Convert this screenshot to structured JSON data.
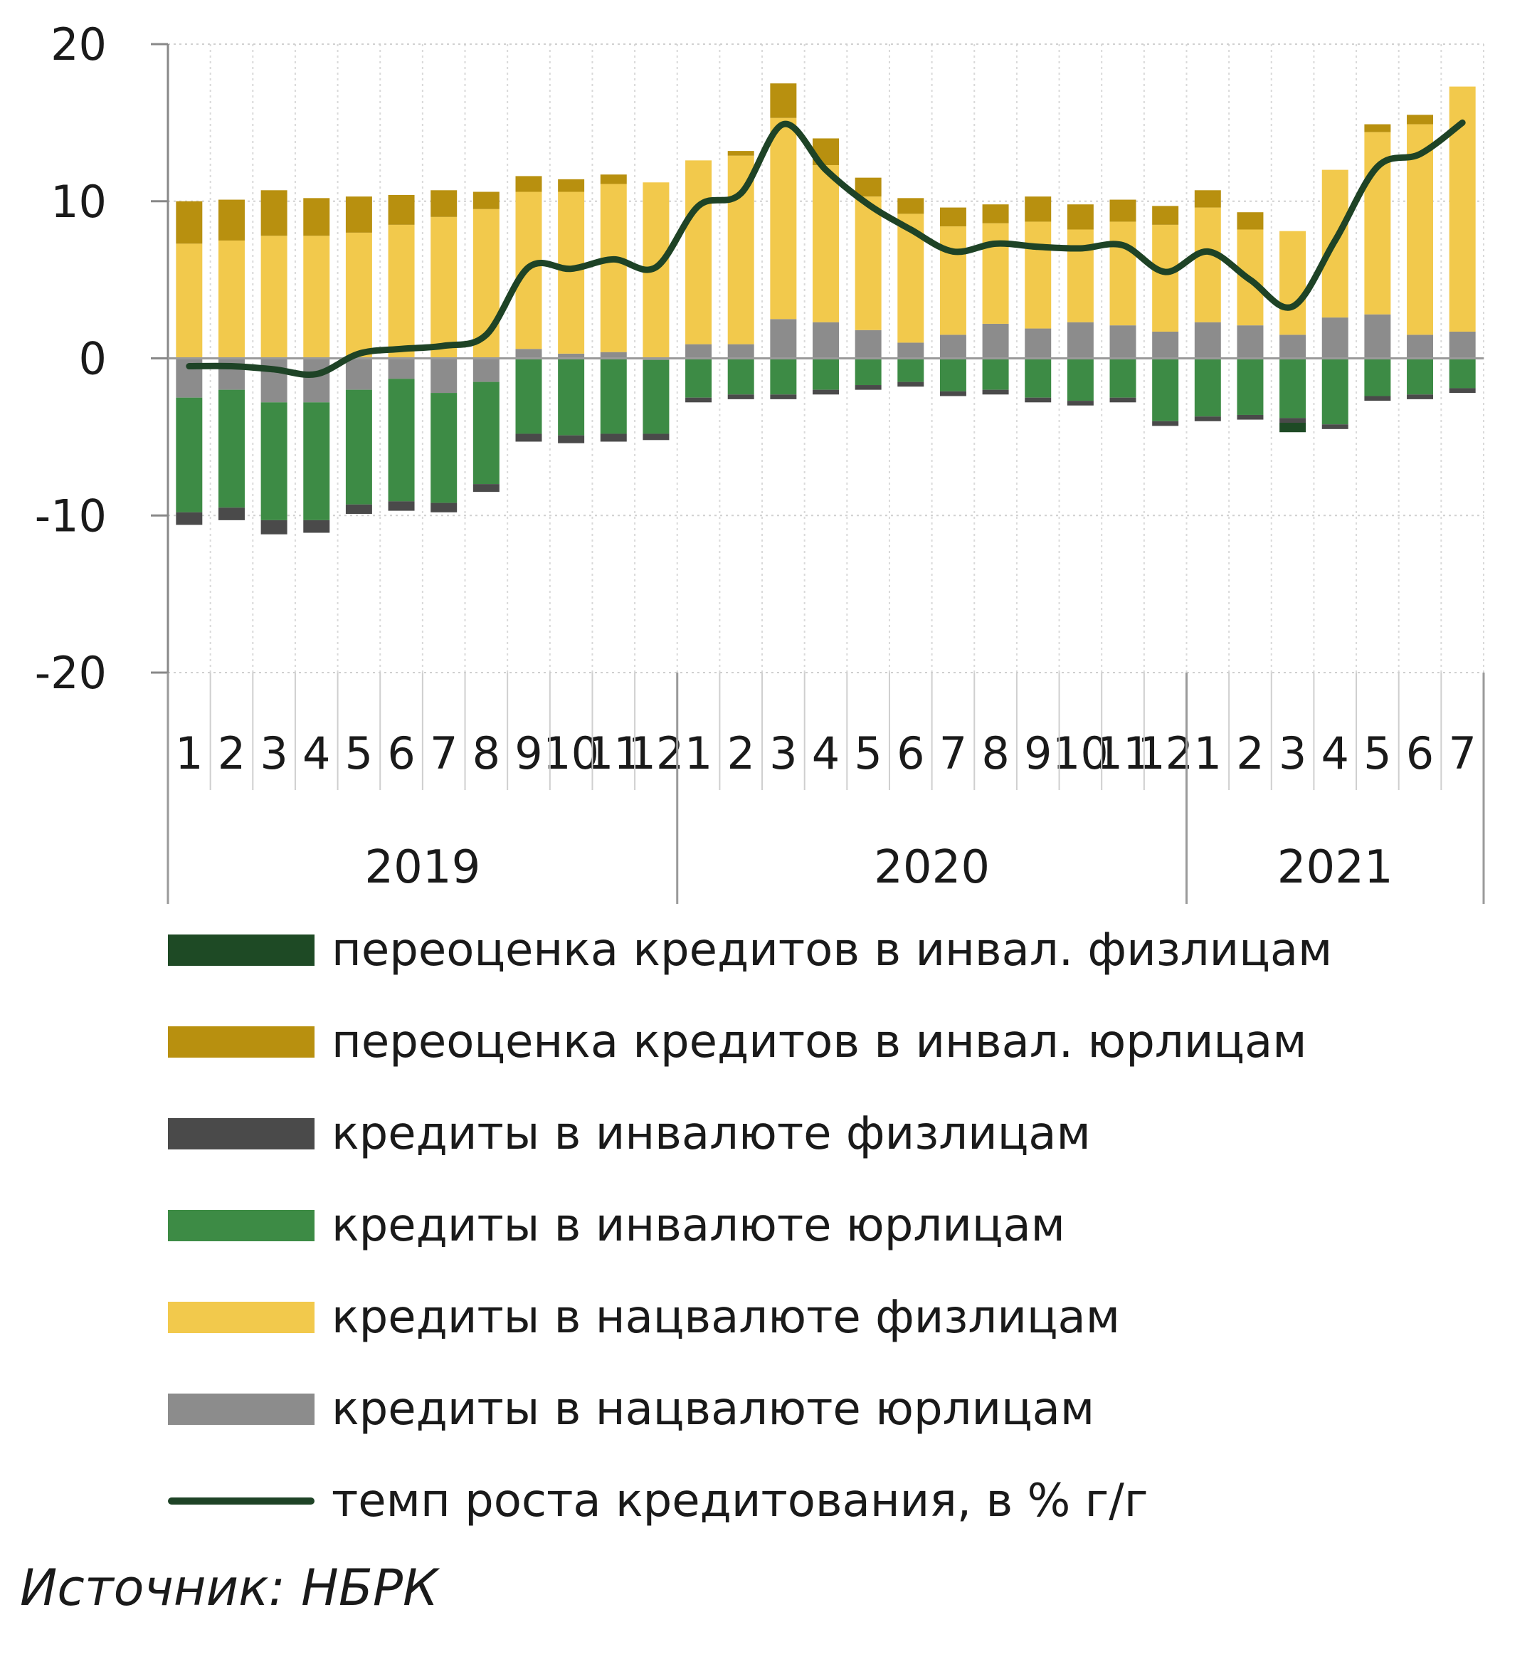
{
  "chart_data": {
    "type": "bar",
    "stacked": true,
    "title": "",
    "xlabel": "",
    "ylabel": "",
    "ylim": [
      -20,
      20
    ],
    "yticks": [
      20,
      10,
      0,
      -10,
      -20
    ],
    "grid": true,
    "legend_position": "bottom",
    "categories": [
      "1",
      "2",
      "3",
      "4",
      "5",
      "6",
      "7",
      "8",
      "9",
      "10",
      "11",
      "12",
      "1",
      "2",
      "3",
      "4",
      "5",
      "6",
      "7",
      "8",
      "9",
      "10",
      "11",
      "12",
      "1",
      "2",
      "3",
      "4",
      "5",
      "6",
      "7"
    ],
    "year_groups": [
      {
        "label": "2019",
        "start": 0,
        "count": 12
      },
      {
        "label": "2020",
        "start": 12,
        "count": 12
      },
      {
        "label": "2021",
        "start": 24,
        "count": 7
      }
    ],
    "series": [
      {
        "name": "кредиты в нацвалюте юрлицам",
        "color": "#8c8c8c",
        "values": [
          -2.5,
          -2.0,
          -2.8,
          -2.8,
          -2.0,
          -1.3,
          -2.2,
          -1.5,
          0.6,
          0.3,
          0.4,
          -0.1,
          0.9,
          0.9,
          2.5,
          2.3,
          1.8,
          1.0,
          1.5,
          2.2,
          1.9,
          2.3,
          2.1,
          1.7,
          2.3,
          2.1,
          1.5,
          2.6,
          2.8,
          1.5,
          1.7
        ]
      },
      {
        "name": "кредиты в нацвалюте физлицам",
        "color": "#f2c94c",
        "values": [
          7.3,
          7.5,
          7.8,
          7.8,
          8.0,
          8.5,
          9.0,
          9.5,
          10.0,
          10.3,
          10.7,
          11.2,
          11.7,
          12.0,
          12.8,
          10.0,
          8.5,
          8.2,
          6.9,
          6.4,
          6.8,
          5.9,
          6.6,
          6.8,
          7.3,
          6.1,
          6.6,
          9.4,
          11.6,
          13.4,
          15.6
        ]
      },
      {
        "name": "кредиты в инвалюте юрлицам",
        "color": "#3d8b45",
        "values": [
          -7.3,
          -7.5,
          -7.5,
          -7.5,
          -7.3,
          -7.8,
          -7.0,
          -6.5,
          -4.8,
          -4.9,
          -4.8,
          -4.7,
          -2.5,
          -2.3,
          -2.3,
          -2.0,
          -1.7,
          -1.5,
          -2.1,
          -2.0,
          -2.5,
          -2.7,
          -2.5,
          -4.0,
          -3.7,
          -3.6,
          -3.8,
          -4.2,
          -2.4,
          -2.3,
          -1.9
        ]
      },
      {
        "name": "кредиты в инвалюте физлицам",
        "color": "#4a4a4a",
        "values": [
          -0.8,
          -0.8,
          -0.9,
          -0.8,
          -0.6,
          -0.6,
          -0.6,
          -0.5,
          -0.5,
          -0.5,
          -0.5,
          -0.4,
          -0.3,
          -0.3,
          -0.3,
          -0.3,
          -0.3,
          -0.3,
          -0.3,
          -0.3,
          -0.3,
          -0.3,
          -0.3,
          -0.3,
          -0.3,
          -0.3,
          -0.3,
          -0.3,
          -0.3,
          -0.3,
          -0.3
        ]
      },
      {
        "name": "переоценка кредитов в инвал. юрлицам",
        "color": "#b8900f",
        "values": [
          2.7,
          2.6,
          2.9,
          2.4,
          2.3,
          1.9,
          1.7,
          1.1,
          1.0,
          0.8,
          0.6,
          0.0,
          0.0,
          0.3,
          2.2,
          1.7,
          1.2,
          1.0,
          1.2,
          1.2,
          1.6,
          1.6,
          1.4,
          1.2,
          1.1,
          1.1,
          0.0,
          0.0,
          0.5,
          0.6,
          0.0
        ]
      },
      {
        "name": "переоценка кредитов в инвал. физлицам",
        "color": "#1e4a25",
        "values": [
          0,
          0,
          0,
          0,
          0,
          0,
          0,
          0,
          0,
          0,
          0,
          0,
          0,
          0,
          0,
          0,
          0,
          0,
          0,
          0,
          0,
          0,
          0,
          0,
          0,
          0,
          -0.6,
          0,
          0,
          0,
          0
        ]
      }
    ],
    "line": {
      "name": "темп роста кредитования, в % г/г",
      "color": "#1e4326",
      "values": [
        -0.5,
        -0.5,
        -0.7,
        -1.0,
        0.3,
        0.6,
        0.8,
        1.5,
        5.8,
        5.7,
        6.3,
        5.8,
        9.7,
        10.5,
        14.9,
        12.0,
        9.8,
        8.2,
        6.8,
        7.3,
        7.1,
        7.0,
        7.2,
        5.5,
        6.8,
        5.0,
        3.3,
        7.5,
        12.2,
        13.0,
        15.0
      ]
    },
    "legend": [
      {
        "label": "переоценка кредитов в инвал. физлицам",
        "color": "#1e4a25",
        "kind": "bar"
      },
      {
        "label": "переоценка кредитов в инвал. юрлицам",
        "color": "#b8900f",
        "kind": "bar"
      },
      {
        "label": "кредиты в инвалюте физлицам",
        "color": "#4a4a4a",
        "kind": "bar"
      },
      {
        "label": "кредиты в инвалюте юрлицам",
        "color": "#3d8b45",
        "kind": "bar"
      },
      {
        "label": "кредиты в нацвалюте физлицам",
        "color": "#f2c94c",
        "kind": "bar"
      },
      {
        "label": "кредиты в нацвалюте юрлицам",
        "color": "#8c8c8c",
        "kind": "bar"
      },
      {
        "label": "темп роста кредитования, в % г/г",
        "color": "#1e4326",
        "kind": "line"
      }
    ]
  },
  "source": "Источник: НБРК"
}
